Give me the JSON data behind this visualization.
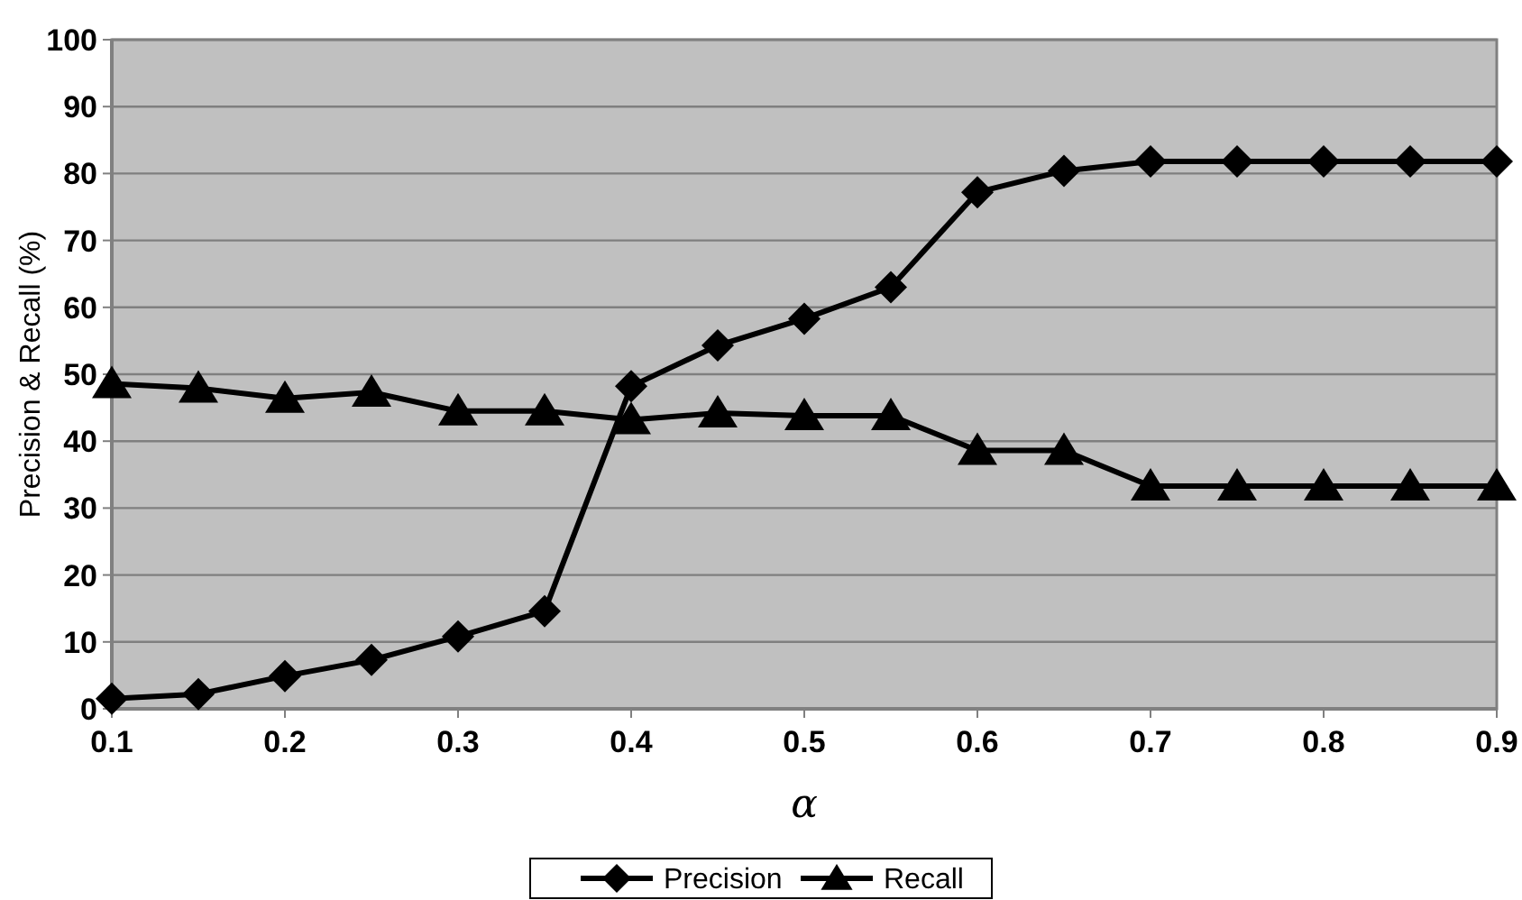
{
  "chart_data": {
    "type": "line",
    "xlabel": "α",
    "ylabel": "Precision & Recall (%)",
    "x": [
      0.1,
      0.15,
      0.2,
      0.25,
      0.3,
      0.35,
      0.4,
      0.45,
      0.5,
      0.55,
      0.6,
      0.65,
      0.7,
      0.75,
      0.8,
      0.85,
      0.9
    ],
    "series": [
      {
        "name": "Precision",
        "color": "#000000",
        "marker": "diamond",
        "values": [
          1.5,
          2.2,
          4.9,
          7.3,
          10.8,
          14.6,
          48.2,
          54.3,
          58.3,
          63.0,
          77.2,
          80.4,
          81.8,
          81.8,
          81.8,
          81.8,
          81.8
        ]
      },
      {
        "name": "Recall",
        "color": "#000000",
        "marker": "triangle",
        "values": [
          48.6,
          47.9,
          46.4,
          47.3,
          44.5,
          44.5,
          43.2,
          44.2,
          43.8,
          43.8,
          38.6,
          38.6,
          33.3,
          33.3,
          33.3,
          33.3,
          33.3
        ]
      }
    ],
    "xlim": [
      0.1,
      0.9
    ],
    "xticks": [
      0.1,
      0.2,
      0.3,
      0.4,
      0.5,
      0.6,
      0.7,
      0.8,
      0.9
    ],
    "ylim": [
      0,
      100
    ],
    "yticks": [
      0,
      10,
      20,
      30,
      40,
      50,
      60,
      70,
      80,
      90,
      100
    ],
    "grid": "y",
    "legend": "bottom",
    "line_style": "solid"
  }
}
